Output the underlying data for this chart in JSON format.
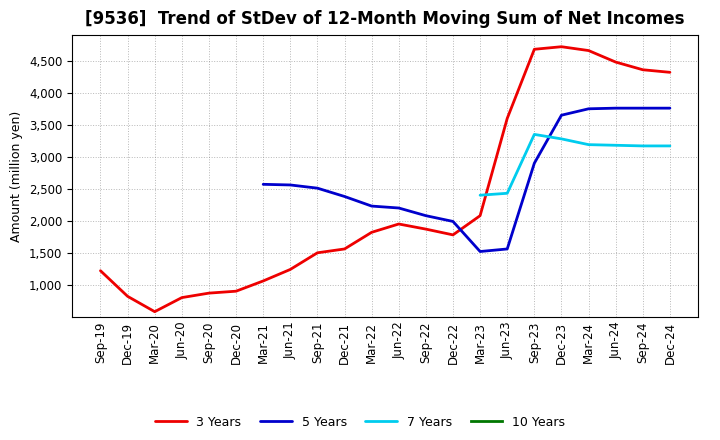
{
  "title": "[9536]  Trend of StDev of 12-Month Moving Sum of Net Incomes",
  "ylabel": "Amount (million yen)",
  "background_color": "#ffffff",
  "grid_color": "#888888",
  "x_labels": [
    "Sep-19",
    "Dec-19",
    "Mar-20",
    "Jun-20",
    "Sep-20",
    "Dec-20",
    "Mar-21",
    "Jun-21",
    "Sep-21",
    "Dec-21",
    "Mar-22",
    "Jun-22",
    "Sep-22",
    "Dec-22",
    "Mar-23",
    "Jun-23",
    "Sep-23",
    "Dec-23",
    "Mar-24",
    "Jun-24",
    "Sep-24",
    "Dec-24"
  ],
  "series": {
    "3 Years": {
      "color": "#ee0000",
      "data": [
        1220,
        820,
        580,
        800,
        870,
        900,
        1060,
        1240,
        1500,
        1560,
        1820,
        1950,
        1870,
        1780,
        2080,
        3600,
        4680,
        4720,
        4660,
        4480,
        4360,
        4320
      ]
    },
    "5 Years": {
      "color": "#0000cc",
      "data": [
        null,
        null,
        null,
        null,
        null,
        null,
        2570,
        2560,
        2510,
        2380,
        2230,
        2200,
        2080,
        1990,
        1520,
        1560,
        2900,
        3650,
        3750,
        3760,
        3760,
        3760
      ]
    },
    "7 Years": {
      "color": "#00ccee",
      "data": [
        null,
        null,
        null,
        null,
        null,
        null,
        null,
        null,
        null,
        null,
        null,
        null,
        null,
        null,
        2400,
        2430,
        3350,
        3280,
        3190,
        3180,
        3170,
        3170
      ]
    },
    "10 Years": {
      "color": "#007700",
      "data": [
        null,
        null,
        null,
        null,
        null,
        null,
        null,
        null,
        null,
        null,
        null,
        null,
        null,
        null,
        null,
        null,
        null,
        null,
        null,
        null,
        null,
        null
      ]
    }
  },
  "ylim": [
    500,
    4900
  ],
  "yticks": [
    1000,
    1500,
    2000,
    2500,
    3000,
    3500,
    4000,
    4500
  ],
  "title_fontsize": 12,
  "label_fontsize": 9,
  "tick_fontsize": 8.5
}
